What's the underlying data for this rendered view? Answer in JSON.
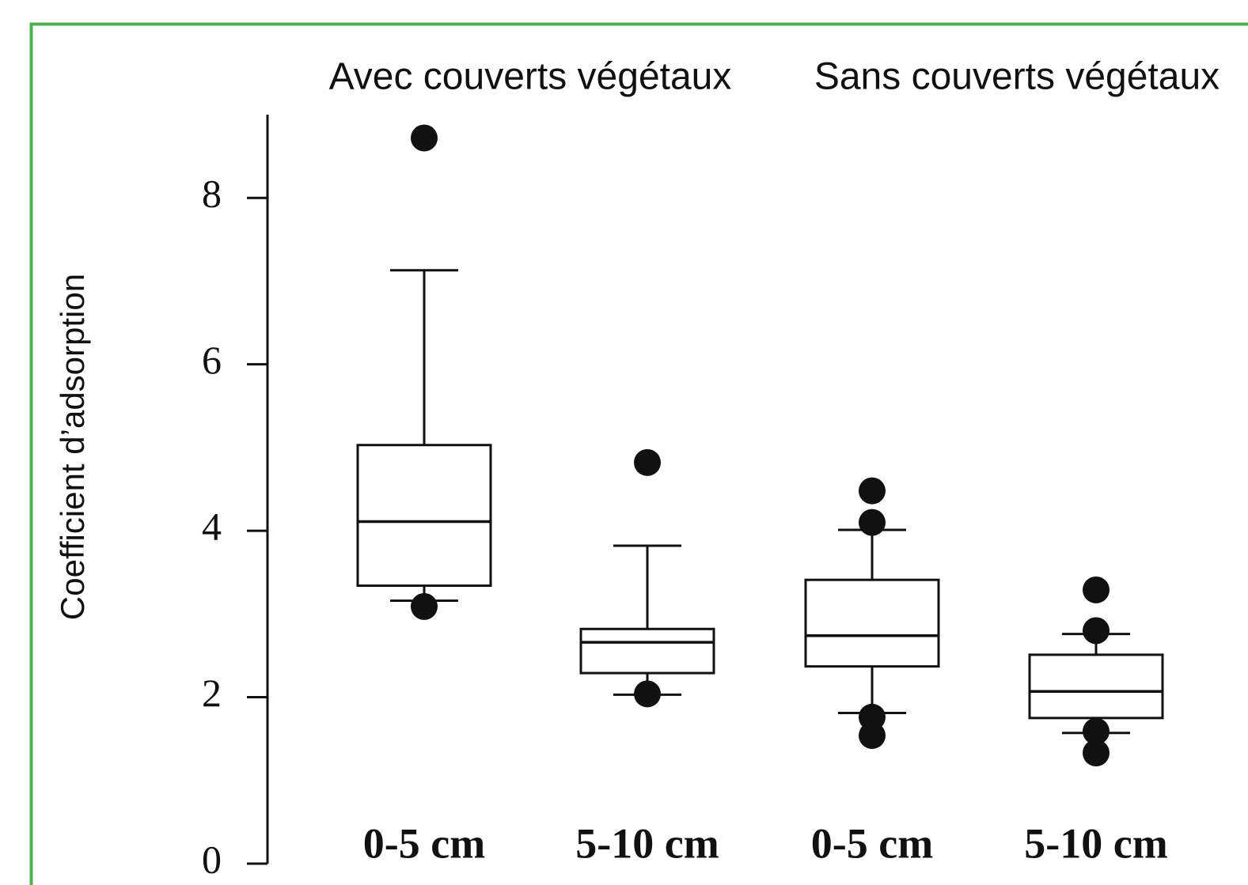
{
  "chart_data": {
    "type": "box",
    "y_label": "Coefficient d’adsorption",
    "group_labels": [
      "Avec couverts végétaux",
      "Sans couverts végétaux"
    ],
    "categories": [
      "0-5 cm",
      "5-10 cm",
      "0-5 cm",
      "5-10 cm"
    ],
    "ylim": [
      0,
      9
    ],
    "yticks": [
      0,
      2,
      4,
      6,
      8
    ],
    "color": "#111111",
    "boxes": [
      {
        "whisker_low": 3.16,
        "q1": 3.34,
        "median": 4.11,
        "q3": 5.03,
        "whisker_high": 7.13,
        "outliers": [
          8.72,
          3.09
        ]
      },
      {
        "whisker_low": 2.03,
        "q1": 2.29,
        "median": 2.66,
        "q3": 2.82,
        "whisker_high": 3.82,
        "outliers": [
          4.82,
          2.04
        ]
      },
      {
        "whisker_low": 1.81,
        "q1": 2.37,
        "median": 2.74,
        "q3": 3.41,
        "whisker_high": 4.01,
        "outliers": [
          4.48,
          4.1,
          1.76,
          1.54
        ]
      },
      {
        "whisker_low": 1.57,
        "q1": 1.75,
        "median": 2.07,
        "q3": 2.51,
        "whisker_high": 2.76,
        "outliers": [
          3.29,
          2.8,
          1.59,
          1.33
        ]
      }
    ]
  }
}
